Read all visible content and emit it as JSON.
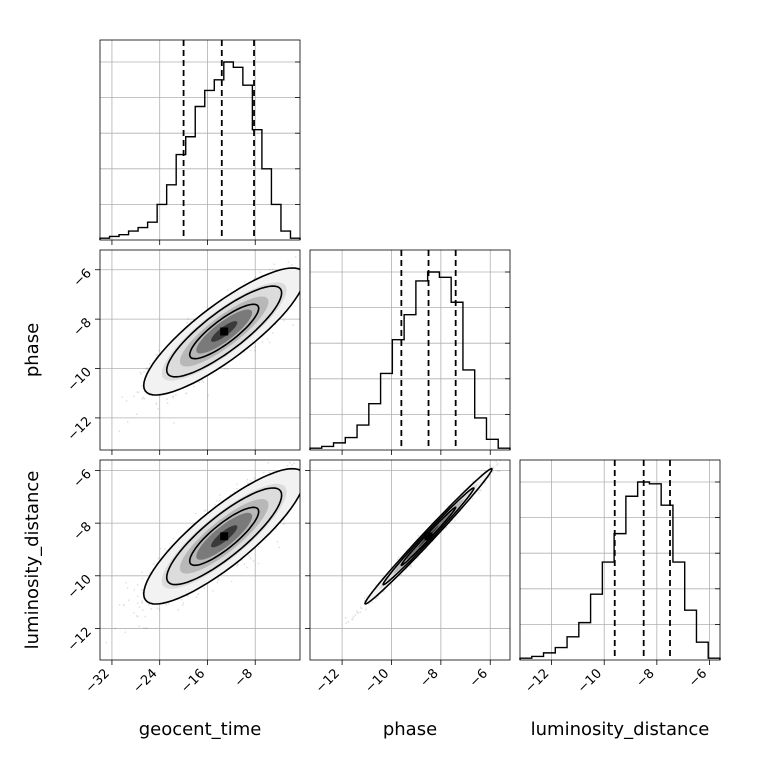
{
  "chart_data": {
    "type": "corner",
    "parameters": [
      "geocent_time",
      "phase",
      "luminosity_distance"
    ],
    "labels": {
      "x": [
        "geocent_time",
        "phase",
        "luminosity_distance"
      ],
      "y": [
        "phase",
        "luminosity_distance"
      ]
    },
    "grid": true,
    "ranges": {
      "geocent_time": [
        -34,
        -0.5
      ],
      "phase": [
        -13.3,
        -5.2
      ],
      "luminosity_distance": [
        -13.2,
        -5.6
      ]
    },
    "ticks": {
      "geocent_time": [
        -32,
        -24,
        -16,
        -8
      ],
      "phase_x": [
        -12,
        -10,
        -8,
        -6
      ],
      "phase_y": [
        -6,
        -8,
        -10,
        -12
      ],
      "luminosity_distance": [
        -6,
        -8,
        -10,
        -12
      ],
      "luminosity_distance_x": [
        -12,
        -10,
        -8,
        -6
      ]
    },
    "tick_labels": {
      "geocent_time": [
        "−32",
        "−24",
        "−16",
        "−8"
      ],
      "phase_x": [
        "−12",
        "−10",
        "−8",
        "−6"
      ],
      "phase_y": [
        "−6",
        "−8",
        "−10",
        "−12"
      ],
      "luminosity_distance": [
        "−6",
        "−8",
        "−10",
        "−12"
      ],
      "luminosity_distance_x": [
        "−12",
        "−10",
        "−8",
        "−6"
      ]
    },
    "quantiles": {
      "geocent_time": [
        -20.0,
        -13.6,
        -8.2
      ],
      "phase": [
        -9.6,
        -8.5,
        -7.4
      ],
      "luminosity_distance": [
        -9.6,
        -8.5,
        -7.5
      ]
    },
    "histograms": {
      "geocent_time": {
        "range": [
          -34,
          -0.5
        ],
        "counts": [
          1,
          2,
          3,
          5,
          7,
          10,
          20,
          31,
          48,
          58,
          75,
          84,
          90,
          100,
          97,
          87,
          62,
          40,
          20,
          5,
          1
        ]
      },
      "phase": {
        "range": [
          -13.3,
          -5.2
        ],
        "counts": [
          1,
          2,
          4,
          7,
          14,
          26,
          43,
          62,
          76,
          95,
          100,
          97,
          83,
          45,
          18,
          6,
          1
        ]
      },
      "luminosity_distance": {
        "range": [
          -13.2,
          -5.6
        ],
        "counts": [
          1,
          2,
          4,
          7,
          13,
          21,
          37,
          55,
          71,
          92,
          100,
          99,
          87,
          55,
          28,
          10,
          1
        ]
      }
    },
    "correlations": {
      "phase_vs_geocent_time": {
        "mean": [
          -13.2,
          -8.5
        ],
        "sd": [
          5.5,
          1.05
        ],
        "rho": 0.85
      },
      "luminosity_distance_vs_geocent_time": {
        "mean": [
          -13.2,
          -8.5
        ],
        "sd": [
          5.5,
          1.05
        ],
        "rho": 0.85
      },
      "luminosity_distance_vs_phase": {
        "mean": [
          -8.5,
          -8.5
        ],
        "sd": [
          1.05,
          1.05
        ],
        "rho": 0.993
      }
    }
  }
}
